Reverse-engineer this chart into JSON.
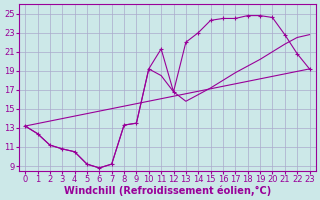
{
  "xlabel": "Windchill (Refroidissement éolien,°C)",
  "background_color": "#cce8e8",
  "grid_color": "#aaaacc",
  "line_color": "#990099",
  "xlim": [
    -0.5,
    23.5
  ],
  "ylim": [
    8.5,
    26.0
  ],
  "xticks": [
    0,
    1,
    2,
    3,
    4,
    5,
    6,
    7,
    8,
    9,
    10,
    11,
    12,
    13,
    14,
    15,
    16,
    17,
    18,
    19,
    20,
    21,
    22,
    23
  ],
  "yticks": [
    9,
    11,
    13,
    15,
    17,
    19,
    21,
    23,
    25
  ],
  "curve1_x": [
    0,
    1,
    2,
    3,
    4,
    5,
    6,
    7,
    8,
    9,
    10,
    11,
    12,
    13,
    14,
    15,
    16,
    17,
    18,
    19,
    20,
    21,
    22,
    23
  ],
  "curve1_y": [
    13.2,
    12.4,
    11.2,
    10.8,
    10.5,
    9.2,
    8.8,
    9.2,
    13.3,
    13.5,
    19.2,
    21.3,
    16.8,
    22.0,
    23.0,
    24.3,
    24.5,
    24.5,
    24.8,
    24.8,
    24.6,
    22.8,
    20.8,
    19.2
  ],
  "curve1_markers": true,
  "curve2_x": [
    0,
    23
  ],
  "curve2_y": [
    13.2,
    19.2
  ],
  "curve2_markers": false,
  "curve3_x": [
    0,
    1,
    2,
    3,
    4,
    5,
    6,
    7,
    8,
    9,
    10,
    11,
    12,
    13,
    14,
    15,
    16,
    17,
    18,
    19,
    20,
    21,
    22,
    23
  ],
  "curve3_y": [
    13.2,
    12.4,
    11.2,
    10.8,
    10.5,
    9.2,
    8.8,
    9.2,
    13.3,
    13.5,
    19.2,
    18.5,
    16.8,
    15.8,
    16.5,
    17.2,
    18.0,
    18.8,
    19.5,
    20.2,
    21.0,
    21.8,
    22.5,
    22.8
  ],
  "curve3_markers": false,
  "tick_fontsize": 6,
  "label_fontsize": 7
}
